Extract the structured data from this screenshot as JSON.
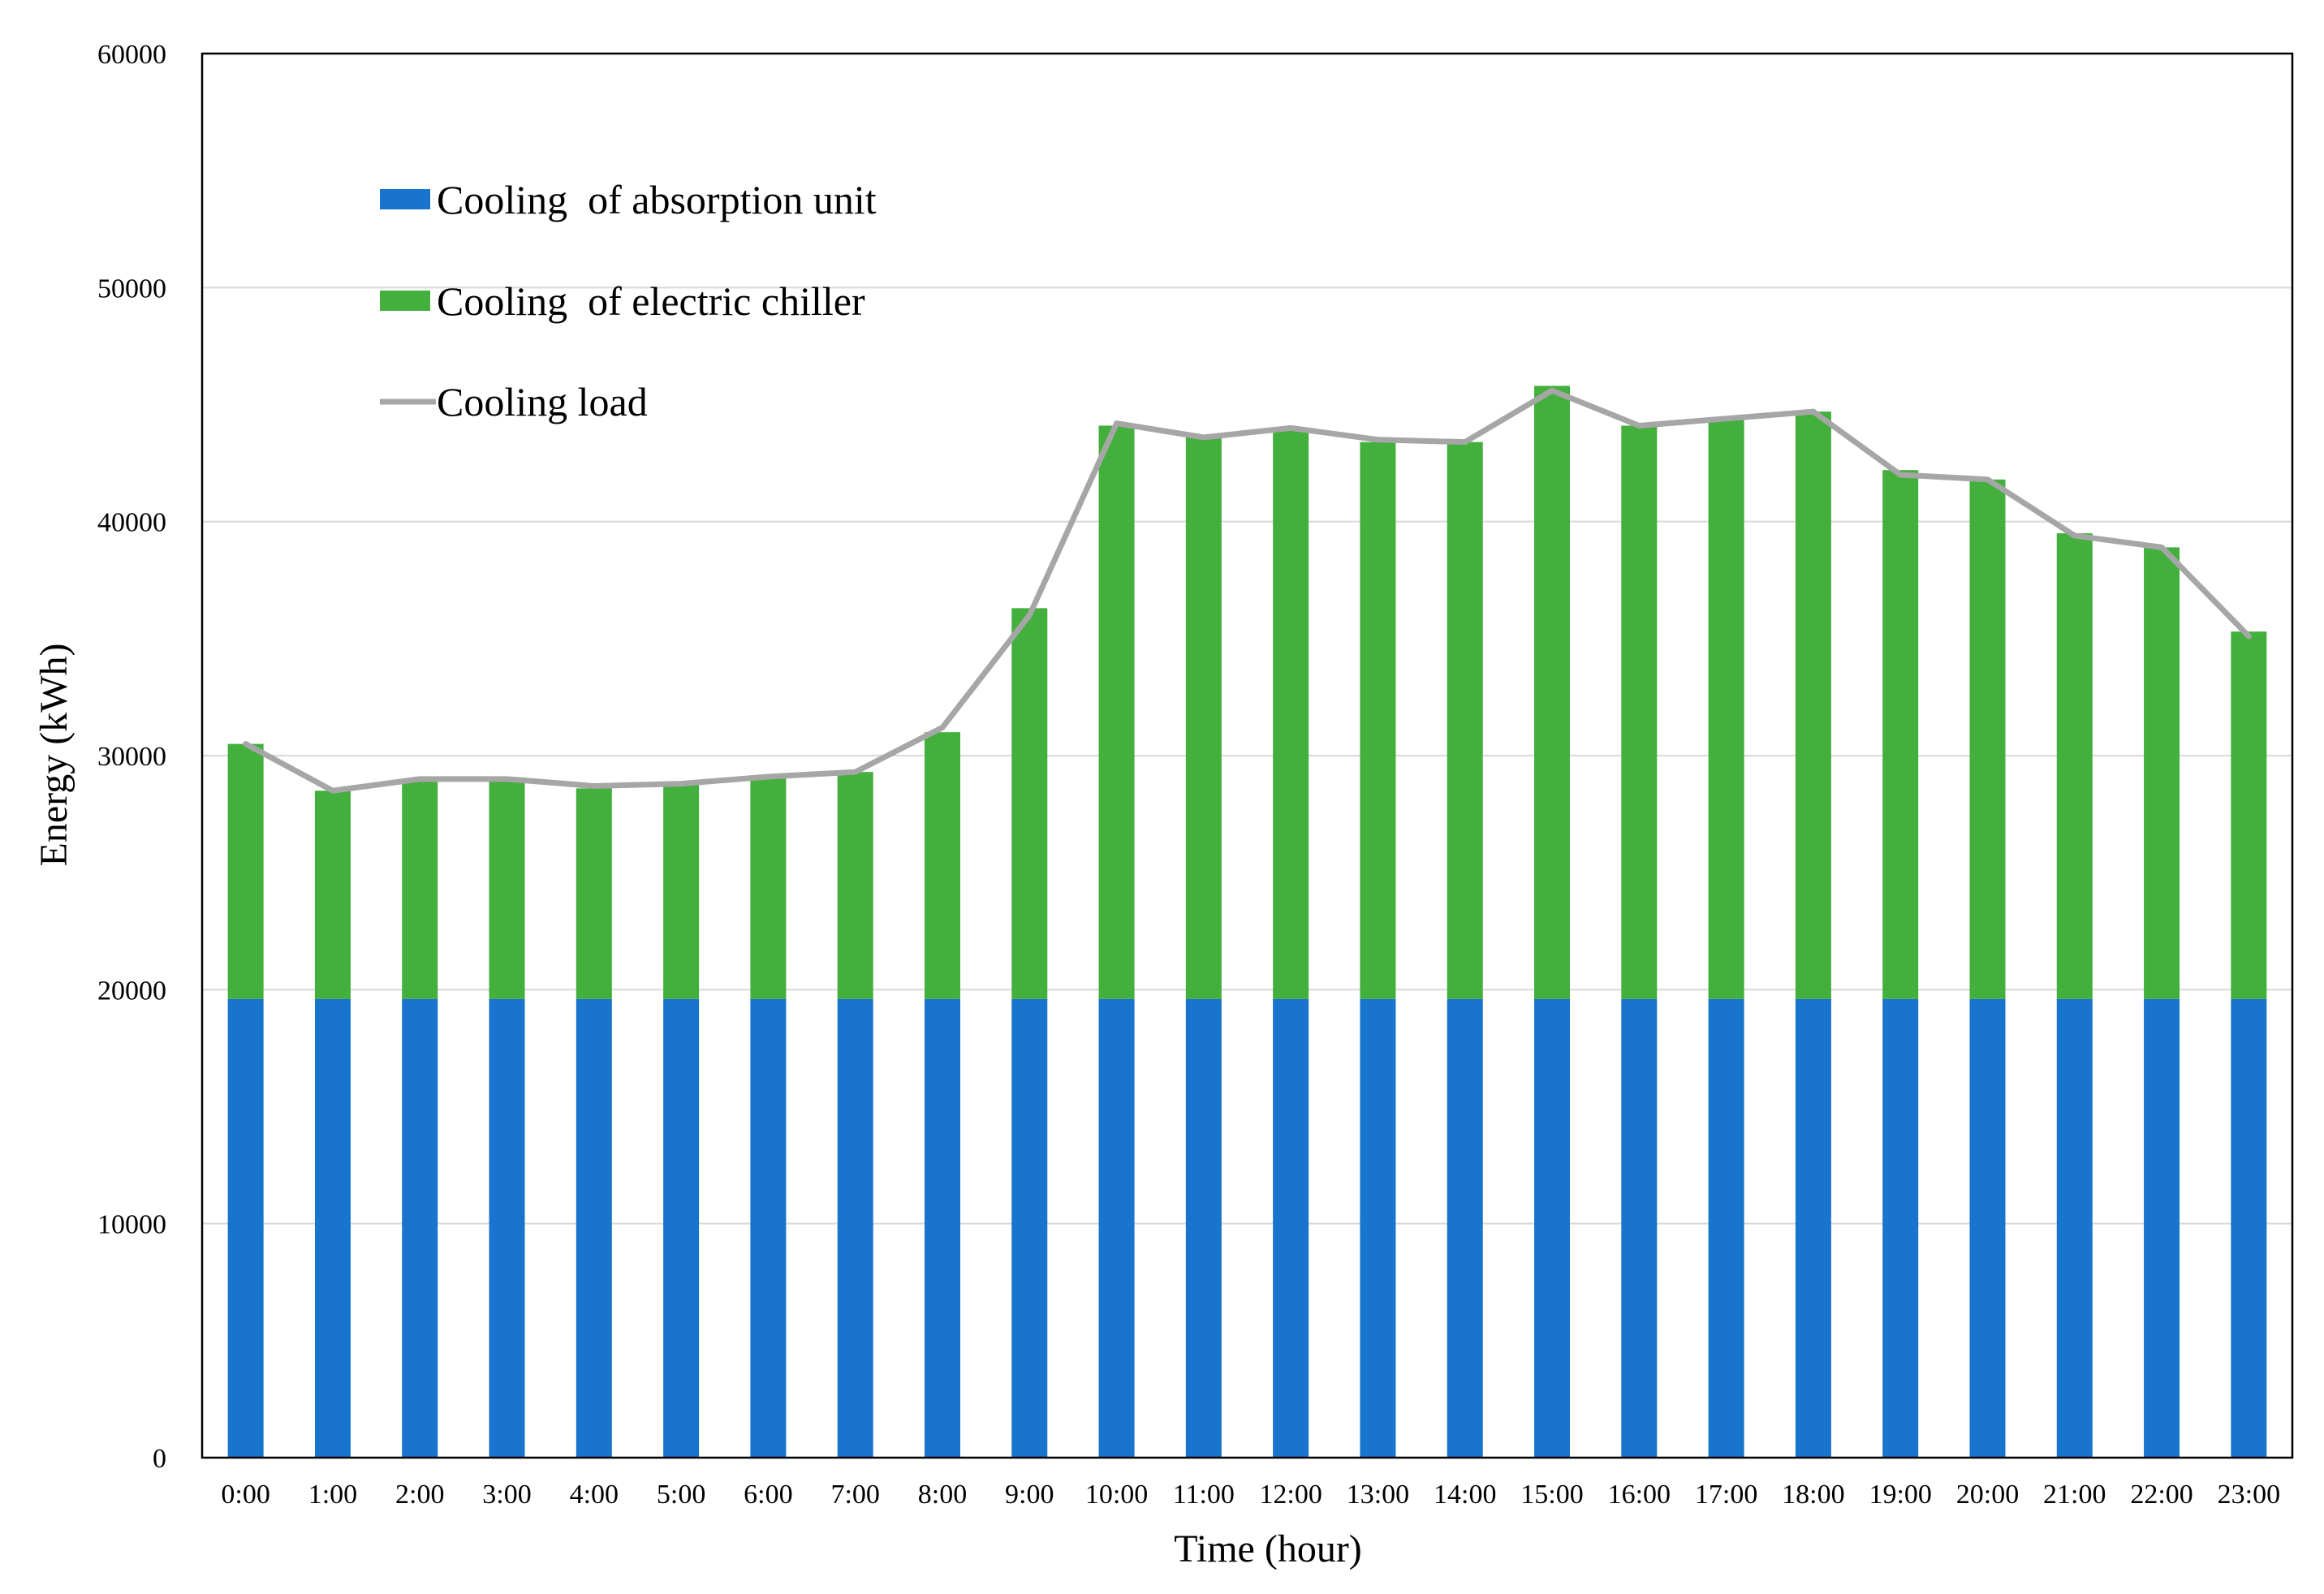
{
  "chart_data": {
    "type": "bar",
    "stacked": true,
    "categories": [
      "0:00",
      "1:00",
      "2:00",
      "3:00",
      "4:00",
      "5:00",
      "6:00",
      "7:00",
      "8:00",
      "9:00",
      "10:00",
      "11:00",
      "12:00",
      "13:00",
      "14:00",
      "15:00",
      "16:00",
      "17:00",
      "18:00",
      "19:00",
      "20:00",
      "21:00",
      "22:00",
      "23:00"
    ],
    "series": [
      {
        "name": "Cooling  of absorption unit",
        "kind": "bar",
        "color": "#1874CD",
        "values": [
          19600,
          19600,
          19600,
          19600,
          19600,
          19600,
          19600,
          19600,
          19600,
          19600,
          19600,
          19600,
          19600,
          19600,
          19600,
          19600,
          19600,
          19600,
          19600,
          19600,
          19600,
          19600,
          19600,
          19600
        ]
      },
      {
        "name": "Cooling  of electric chiller",
        "kind": "bar",
        "color": "#43AF3C",
        "values": [
          10900,
          8900,
          9400,
          9400,
          9000,
          9200,
          9500,
          9700,
          11400,
          16700,
          24500,
          24000,
          24400,
          23800,
          23800,
          26200,
          24500,
          24800,
          25100,
          22600,
          22200,
          19900,
          19300,
          15700
        ]
      },
      {
        "name": "Cooling load",
        "kind": "line",
        "color": "#A6A6A6",
        "values": [
          30500,
          28500,
          29000,
          29000,
          28700,
          28800,
          29100,
          29300,
          31200,
          36000,
          44200,
          43600,
          44000,
          43500,
          43400,
          45600,
          44100,
          44400,
          44700,
          42000,
          41800,
          39400,
          38900,
          35100
        ]
      }
    ],
    "title": "",
    "xlabel": "Time (hour)",
    "ylabel": "Energy (kWh)",
    "ylim": [
      0,
      60000
    ],
    "yticks": [
      "0",
      "10000",
      "20000",
      "30000",
      "40000",
      "50000",
      "60000"
    ],
    "grid": true,
    "legend_position": "top-left"
  }
}
